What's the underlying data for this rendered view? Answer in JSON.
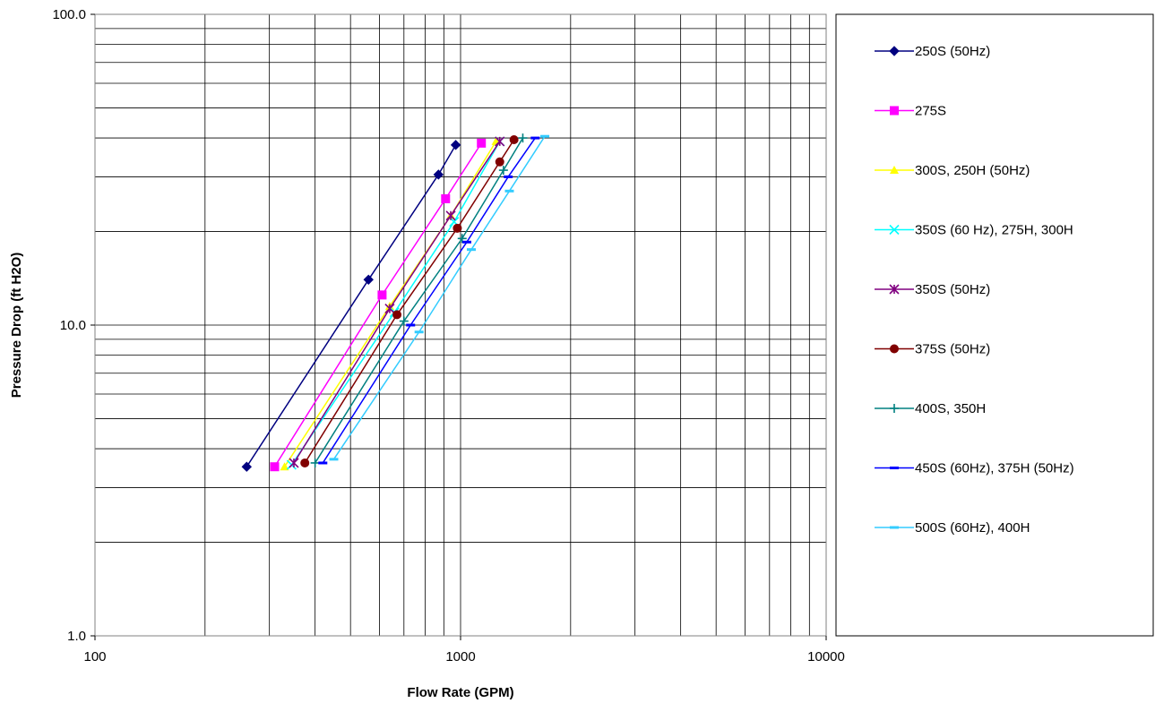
{
  "chart_data": {
    "type": "line",
    "title": "",
    "xlabel": "Flow Rate (GPM)",
    "ylabel": "Pressure Drop (ft H2O)",
    "x_scale": "log",
    "y_scale": "log",
    "xlim": [
      100,
      10000
    ],
    "ylim": [
      1,
      100
    ],
    "x_ticks": [
      100,
      1000,
      10000
    ],
    "x_tick_labels": [
      "100",
      "1000",
      "10000"
    ],
    "y_ticks": [
      1,
      10,
      100
    ],
    "y_tick_labels": [
      "1.0",
      "10.0",
      "100.0"
    ],
    "grid": true,
    "legend_position": "right",
    "series": [
      {
        "name": "250S (50Hz)",
        "color": "#000080",
        "marker": "diamond",
        "x": [
          260,
          560,
          870,
          970
        ],
        "y": [
          3.5,
          14,
          30.5,
          38
        ]
      },
      {
        "name": "275S",
        "color": "#FF00FF",
        "marker": "square",
        "x": [
          310,
          610,
          910,
          1140
        ],
        "y": [
          3.5,
          12.5,
          25.5,
          38.5
        ]
      },
      {
        "name": "300S, 250H (50Hz)",
        "color": "#FFFF00",
        "marker": "triangle",
        "x": [
          330,
          640,
          940,
          1250
        ],
        "y": [
          3.5,
          11.5,
          22.5,
          39
        ]
      },
      {
        "name": "350S (60 Hz), 275H, 300H",
        "color": "#00FFFF",
        "marker": "x",
        "x": [
          345,
          660,
          960,
          1280
        ],
        "y": [
          3.55,
          11,
          21.5,
          39
        ]
      },
      {
        "name": "350S (50Hz)",
        "color": "#800080",
        "marker": "star",
        "x": [
          350,
          640,
          940,
          1280
        ],
        "y": [
          3.6,
          11.3,
          22.5,
          39
        ]
      },
      {
        "name": "375S (50Hz)",
        "color": "#800000",
        "marker": "circle",
        "x": [
          375,
          670,
          980,
          1400,
          1280
        ],
        "y": [
          3.6,
          10.8,
          20.5,
          39.5,
          33.5
        ]
      },
      {
        "name": "400S, 350H",
        "color": "#008080",
        "marker": "plus",
        "x": [
          400,
          700,
          1010,
          1310,
          1480
        ],
        "y": [
          3.6,
          10.3,
          19,
          31.5,
          40
        ]
      },
      {
        "name": "450S (60Hz), 375H (50Hz)",
        "color": "#0000FF",
        "marker": "dash",
        "x": [
          420,
          730,
          1040,
          1350,
          1600
        ],
        "y": [
          3.6,
          10,
          18.5,
          30,
          40
        ]
      },
      {
        "name": "500S (60Hz), 400H",
        "color": "#33CCFF",
        "marker": "dash",
        "x": [
          450,
          770,
          1070,
          1360,
          1700
        ],
        "y": [
          3.7,
          9.5,
          17.5,
          27,
          40.5
        ]
      }
    ]
  }
}
